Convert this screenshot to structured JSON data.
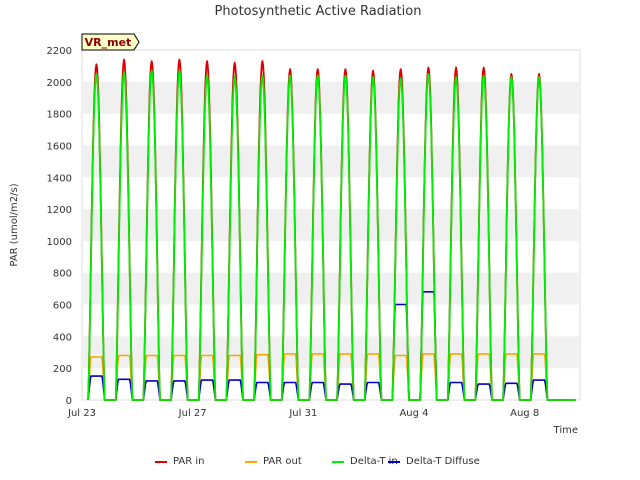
{
  "chart_data": {
    "type": "line",
    "title": "Photosynthetic Active Radiation",
    "site_badge": "VR_met",
    "xlabel": "Time",
    "ylabel": "PAR (umol/m2/s)",
    "ylim": [
      0,
      2200
    ],
    "yticks": [
      0,
      200,
      400,
      600,
      800,
      1000,
      1200,
      1400,
      1600,
      1800,
      2000,
      2200
    ],
    "xlim": [
      "2024-07-23",
      "2024-08-10"
    ],
    "xticks": [
      {
        "date": "2024-07-23",
        "label": "Jul 23"
      },
      {
        "date": "2024-07-27",
        "label": "Jul 27"
      },
      {
        "date": "2024-07-31",
        "label": "Jul 31"
      },
      {
        "date": "2024-08-04",
        "label": "Aug 4"
      },
      {
        "date": "2024-08-08",
        "label": "Aug 8"
      }
    ],
    "grid": "horizontal bands",
    "legend_position": "bottom",
    "days": [
      "2024-07-23",
      "2024-07-24",
      "2024-07-25",
      "2024-07-26",
      "2024-07-27",
      "2024-07-28",
      "2024-07-29",
      "2024-07-30",
      "2024-07-31",
      "2024-08-01",
      "2024-08-02",
      "2024-08-03",
      "2024-08-04",
      "2024-08-05",
      "2024-08-06",
      "2024-08-07",
      "2024-08-08",
      "2024-08-09"
    ],
    "series": [
      {
        "name": "PAR in",
        "color": "#dd0000",
        "daily_peak": [
          2110,
          2140,
          2130,
          2140,
          2130,
          2120,
          2130,
          2080,
          2080,
          2080,
          2070,
          2080,
          2090,
          2090,
          2090,
          2050,
          2050,
          0
        ]
      },
      {
        "name": "PAR out",
        "color": "#ffa500",
        "daily_peak": [
          270,
          280,
          280,
          280,
          280,
          280,
          285,
          290,
          290,
          290,
          290,
          280,
          290,
          290,
          290,
          290,
          290,
          0
        ]
      },
      {
        "name": "Delta-T in",
        "color": "#00ee00",
        "daily_peak": [
          2050,
          2060,
          2070,
          2070,
          2040,
          2030,
          2040,
          2040,
          2040,
          2040,
          2030,
          2020,
          2050,
          2030,
          2040,
          2030,
          2030,
          0
        ]
      },
      {
        "name": "Delta-T Diffuse",
        "color": "#0000cc",
        "daily_peak": [
          150,
          130,
          120,
          120,
          125,
          125,
          110,
          110,
          110,
          100,
          110,
          600,
          680,
          110,
          100,
          105,
          125,
          0
        ]
      }
    ]
  }
}
